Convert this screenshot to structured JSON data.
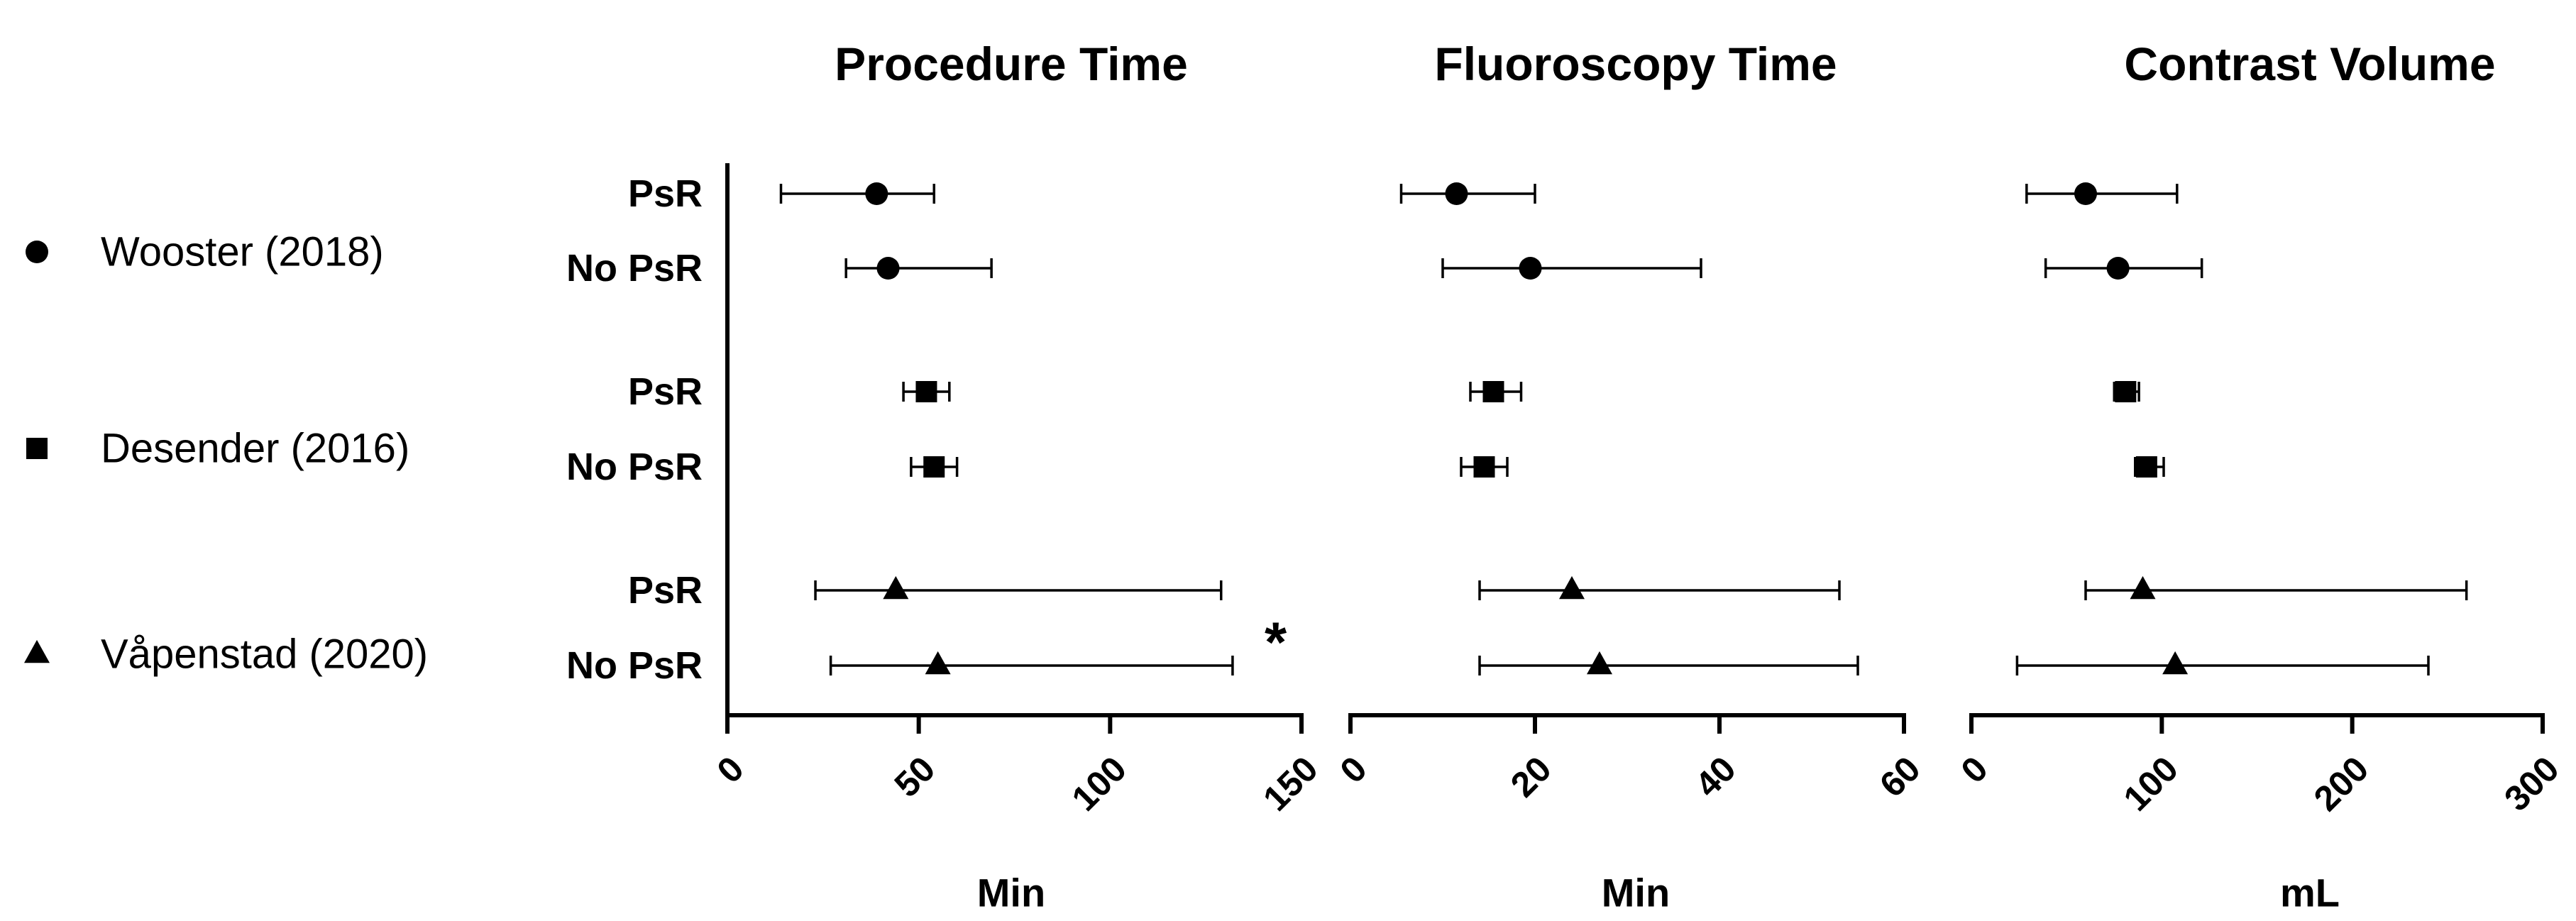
{
  "legend": [
    {
      "label": "Wooster (2018)",
      "marker": "circle"
    },
    {
      "label": "Desender (2016)",
      "marker": "square"
    },
    {
      "label": "Våpenstad (2020)",
      "marker": "triangle"
    }
  ],
  "row_labels": [
    "PsR",
    "No PsR",
    "PsR",
    "No PsR",
    "PsR",
    "No PsR"
  ],
  "chart_data": [
    {
      "type": "scatter",
      "title": "Procedure Time",
      "xlabel": "Min",
      "xlim": [
        0,
        150
      ],
      "ticks": [
        "0",
        "50",
        "100",
        "150"
      ],
      "grid": false,
      "annotation": "*",
      "points": [
        {
          "study": "Wooster (2018)",
          "group": "PsR",
          "value": 39,
          "low": 14,
          "high": 54
        },
        {
          "study": "Wooster (2018)",
          "group": "No PsR",
          "value": 42,
          "low": 31,
          "high": 69
        },
        {
          "study": "Desender (2016)",
          "group": "PsR",
          "value": 52,
          "low": 46,
          "high": 58
        },
        {
          "study": "Desender (2016)",
          "group": "No PsR",
          "value": 54,
          "low": 48,
          "high": 60
        },
        {
          "study": "Våpenstad (2020)",
          "group": "PsR",
          "value": 44,
          "low": 23,
          "high": 129
        },
        {
          "study": "Våpenstad (2020)",
          "group": "No PsR",
          "value": 55,
          "low": 27,
          "high": 132
        }
      ]
    },
    {
      "type": "scatter",
      "title": "Fluoroscopy Time",
      "xlabel": "Min",
      "xlim": [
        0,
        60
      ],
      "ticks": [
        "0",
        "20",
        "40",
        "60"
      ],
      "grid": false,
      "points": [
        {
          "study": "Wooster (2018)",
          "group": "PsR",
          "value": 11.5,
          "low": 5.5,
          "high": 20
        },
        {
          "study": "Wooster (2018)",
          "group": "No PsR",
          "value": 19.5,
          "low": 10,
          "high": 38
        },
        {
          "study": "Desender (2016)",
          "group": "PsR",
          "value": 15.5,
          "low": 13,
          "high": 18.5
        },
        {
          "study": "Desender (2016)",
          "group": "No PsR",
          "value": 14.5,
          "low": 12,
          "high": 17
        },
        {
          "study": "Våpenstad (2020)",
          "group": "PsR",
          "value": 24,
          "low": 14,
          "high": 53
        },
        {
          "study": "Våpenstad (2020)",
          "group": "No PsR",
          "value": 27,
          "low": 14,
          "high": 55
        }
      ]
    },
    {
      "type": "scatter",
      "title": "Contrast Volume",
      "xlabel": "mL",
      "xlim": [
        0,
        300
      ],
      "ticks": [
        "0",
        "100",
        "200",
        "300"
      ],
      "grid": false,
      "points": [
        {
          "study": "Wooster (2018)",
          "group": "PsR",
          "value": 60,
          "low": 29,
          "high": 108
        },
        {
          "study": "Wooster (2018)",
          "group": "No PsR",
          "value": 77,
          "low": 39,
          "high": 121
        },
        {
          "study": "Desender (2016)",
          "group": "PsR",
          "value": 81,
          "low": 75,
          "high": 88
        },
        {
          "study": "Desender (2016)",
          "group": "No PsR",
          "value": 92,
          "low": 86,
          "high": 101
        },
        {
          "study": "Våpenstad (2020)",
          "group": "PsR",
          "value": 90,
          "low": 60,
          "high": 260
        },
        {
          "study": "Våpenstad (2020)",
          "group": "No PsR",
          "value": 107,
          "low": 24,
          "high": 240
        }
      ]
    }
  ]
}
